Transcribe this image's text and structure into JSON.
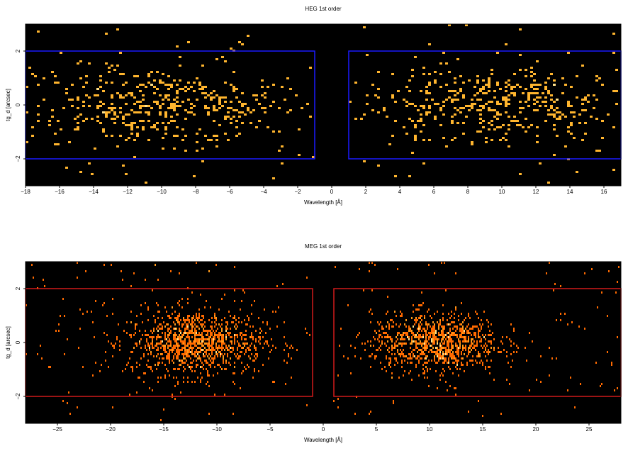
{
  "chart_data": [
    {
      "type": "heatmap",
      "title": "HEG 1st order",
      "xlabel": "Wavelength [Å]",
      "ylabel": "tg_d [arcsec]",
      "xlim": [
        -18,
        17
      ],
      "ylim": [
        -3,
        3
      ],
      "x_ticks": [
        -18,
        -16,
        -14,
        -12,
        -10,
        -8,
        -6,
        -4,
        -2,
        0,
        2,
        4,
        6,
        8,
        10,
        12,
        14,
        16
      ],
      "y_ticks": [
        -2,
        0,
        2
      ],
      "background": "#000000",
      "colormap": [
        "#8b2a00",
        "#ff8c00",
        "#ffb52e",
        "#ffe08a"
      ],
      "region_color": "#1a1aff",
      "regions": [
        {
          "x": [
            -18,
            -1
          ],
          "y": [
            -2,
            2
          ]
        },
        {
          "x": [
            1,
            17
          ],
          "y": [
            -2,
            2
          ]
        }
      ],
      "clusters": [
        {
          "x_range": [
            -18,
            -1
          ],
          "center": -10,
          "spread": 4.0,
          "y_sigma": 0.75,
          "count": 420
        },
        {
          "x_range": [
            1,
            17
          ],
          "center": 10,
          "spread": 3.8,
          "y_sigma": 0.7,
          "count": 400
        }
      ]
    },
    {
      "type": "heatmap",
      "title": "MEG 1st order",
      "xlabel": "Wavelength [Å]",
      "ylabel": "tg_d [arcsec]",
      "xlim": [
        -28,
        28
      ],
      "ylim": [
        -3,
        3
      ],
      "x_ticks": [
        -25,
        -20,
        -15,
        -10,
        -5,
        0,
        5,
        10,
        15,
        20,
        25
      ],
      "y_ticks": [
        -2,
        0,
        2
      ],
      "background": "#000000",
      "colormap": [
        "#8b2a00",
        "#ff6a00",
        "#ff9a1a",
        "#ffe08a"
      ],
      "region_color": "#d11a1a",
      "regions": [
        {
          "x": [
            -28,
            -1
          ],
          "y": [
            -2,
            2
          ]
        },
        {
          "x": [
            1,
            28
          ],
          "y": [
            -2,
            2
          ]
        }
      ],
      "clusters": [
        {
          "x_range": [
            -28,
            -1
          ],
          "center": -12,
          "spread": 3.2,
          "y_sigma": 0.6,
          "count": 1100
        },
        {
          "x_range": [
            1,
            28
          ],
          "center": 10.5,
          "spread": 3.0,
          "y_sigma": 0.55,
          "count": 1000
        }
      ]
    }
  ]
}
